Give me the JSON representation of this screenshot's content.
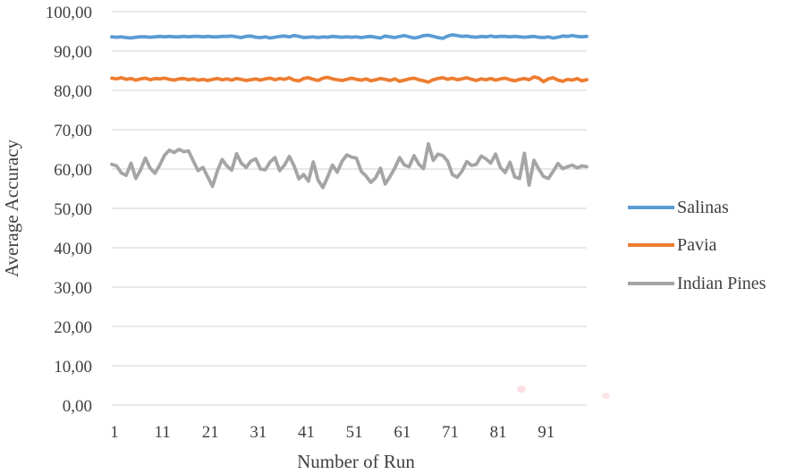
{
  "chart_data": {
    "type": "line",
    "title": "",
    "xlabel": "Number of Run",
    "ylabel": "Average Accuracy",
    "ylim": [
      0,
      100
    ],
    "grid": "horizontal",
    "legend_position": "right",
    "x": [
      1,
      2,
      3,
      4,
      5,
      6,
      7,
      8,
      9,
      10,
      11,
      12,
      13,
      14,
      15,
      16,
      17,
      18,
      19,
      20,
      21,
      22,
      23,
      24,
      25,
      26,
      27,
      28,
      29,
      30,
      31,
      32,
      33,
      34,
      35,
      36,
      37,
      38,
      39,
      40,
      41,
      42,
      43,
      44,
      45,
      46,
      47,
      48,
      49,
      50,
      51,
      52,
      53,
      54,
      55,
      56,
      57,
      58,
      59,
      60,
      61,
      62,
      63,
      64,
      65,
      66,
      67,
      68,
      69,
      70,
      71,
      72,
      73,
      74,
      75,
      76,
      77,
      78,
      79,
      80,
      81,
      82,
      83,
      84,
      85,
      86,
      87,
      88,
      89,
      90,
      91,
      92,
      93,
      94,
      95,
      96,
      97,
      98,
      99,
      100
    ],
    "yticks": [
      {
        "v": 0,
        "label": "0,00"
      },
      {
        "v": 10,
        "label": "10,00"
      },
      {
        "v": 20,
        "label": "20,00"
      },
      {
        "v": 30,
        "label": "30,00"
      },
      {
        "v": 40,
        "label": "40,00"
      },
      {
        "v": 50,
        "label": "50,00"
      },
      {
        "v": 60,
        "label": "60,00"
      },
      {
        "v": 70,
        "label": "70,00"
      },
      {
        "v": 80,
        "label": "80,00"
      },
      {
        "v": 90,
        "label": "90,00"
      },
      {
        "v": 100,
        "label": "100,00"
      }
    ],
    "xticks": [
      {
        "i": 0,
        "label": "1"
      },
      {
        "i": 10,
        "label": "11"
      },
      {
        "i": 20,
        "label": "21"
      },
      {
        "i": 30,
        "label": "31"
      },
      {
        "i": 40,
        "label": "41"
      },
      {
        "i": 50,
        "label": "51"
      },
      {
        "i": 60,
        "label": "61"
      },
      {
        "i": 70,
        "label": "71"
      },
      {
        "i": 80,
        "label": "81"
      },
      {
        "i": 90,
        "label": "91"
      }
    ],
    "series": [
      {
        "name": "Salinas",
        "color": "#5B9BD5",
        "values": [
          93.6,
          93.5,
          93.6,
          93.4,
          93.3,
          93.5,
          93.6,
          93.6,
          93.5,
          93.6,
          93.7,
          93.6,
          93.7,
          93.6,
          93.6,
          93.7,
          93.6,
          93.7,
          93.7,
          93.6,
          93.7,
          93.6,
          93.6,
          93.7,
          93.7,
          93.8,
          93.6,
          93.4,
          93.7,
          93.8,
          93.5,
          93.4,
          93.6,
          93.3,
          93.5,
          93.7,
          93.8,
          93.6,
          93.9,
          93.7,
          93.4,
          93.5,
          93.6,
          93.4,
          93.6,
          93.5,
          93.7,
          93.6,
          93.5,
          93.6,
          93.5,
          93.6,
          93.4,
          93.6,
          93.7,
          93.5,
          93.3,
          93.8,
          93.6,
          93.4,
          93.7,
          93.9,
          93.6,
          93.3,
          93.5,
          93.9,
          94.0,
          93.7,
          93.4,
          93.2,
          93.8,
          94.1,
          93.9,
          93.7,
          93.8,
          93.6,
          93.5,
          93.7,
          93.6,
          93.8,
          93.6,
          93.7,
          93.7,
          93.6,
          93.7,
          93.6,
          93.5,
          93.6,
          93.7,
          93.5,
          93.4,
          93.6,
          93.3,
          93.5,
          93.8,
          93.7,
          93.9,
          93.7,
          93.6,
          93.7
        ]
      },
      {
        "name": "Pavia",
        "color": "#ED7D31",
        "values": [
          83.1,
          82.9,
          83.2,
          82.8,
          83.0,
          82.6,
          82.9,
          83.1,
          82.7,
          83.0,
          82.9,
          83.1,
          82.8,
          82.6,
          82.9,
          83.0,
          82.7,
          82.9,
          82.6,
          82.8,
          82.5,
          82.8,
          83.0,
          82.7,
          82.9,
          82.6,
          83.0,
          82.8,
          82.5,
          82.7,
          82.9,
          82.6,
          82.9,
          83.1,
          82.7,
          83.0,
          82.8,
          83.2,
          82.6,
          82.4,
          83.0,
          83.2,
          82.8,
          82.5,
          83.1,
          83.3,
          82.9,
          82.7,
          82.5,
          82.8,
          83.1,
          82.8,
          82.6,
          82.9,
          82.4,
          82.7,
          83.0,
          82.8,
          82.5,
          82.9,
          82.3,
          82.6,
          82.9,
          83.1,
          82.7,
          82.4,
          82.1,
          82.7,
          83.0,
          83.2,
          82.8,
          83.1,
          82.7,
          82.9,
          83.2,
          82.8,
          82.5,
          82.9,
          82.7,
          83.0,
          82.6,
          82.9,
          83.1,
          82.7,
          82.4,
          82.8,
          83.0,
          82.7,
          83.4,
          83.1,
          82.2,
          82.9,
          83.2,
          82.6,
          82.3,
          82.8,
          82.6,
          83.0,
          82.4,
          82.7
        ]
      },
      {
        "name": "Indian Pines",
        "color": "#A5A5A5",
        "values": [
          61.2,
          60.8,
          59.0,
          58.4,
          61.5,
          57.6,
          59.8,
          62.8,
          60.2,
          58.9,
          61.0,
          63.5,
          64.8,
          64.2,
          65.0,
          64.4,
          64.6,
          62.0,
          59.6,
          60.4,
          58.0,
          55.6,
          59.5,
          62.4,
          60.8,
          59.7,
          63.9,
          61.5,
          60.4,
          62.0,
          62.6,
          60.0,
          59.8,
          61.8,
          62.9,
          59.6,
          61.0,
          63.2,
          60.8,
          57.5,
          58.6,
          56.9,
          61.8,
          57.2,
          55.3,
          58.0,
          61.0,
          59.2,
          62.0,
          63.6,
          63.0,
          62.8,
          59.4,
          58.2,
          56.6,
          57.8,
          60.2,
          56.2,
          58.1,
          60.3,
          62.9,
          61.0,
          60.6,
          63.4,
          61.2,
          60.1,
          66.4,
          62.2,
          63.8,
          63.4,
          62.0,
          58.6,
          57.9,
          59.4,
          61.9,
          60.9,
          61.2,
          63.3,
          62.6,
          61.5,
          63.8,
          60.4,
          59.1,
          61.7,
          58.0,
          57.6,
          64.0,
          55.9,
          62.2,
          60.0,
          58.1,
          57.6,
          59.4,
          61.4,
          60.1,
          60.6,
          61.0,
          60.3,
          60.8,
          60.6
        ]
      }
    ],
    "colors": {
      "gridline": "#D9D9D9",
      "axis_line": "#D9D9D9",
      "text": "#3F3F3F"
    }
  }
}
